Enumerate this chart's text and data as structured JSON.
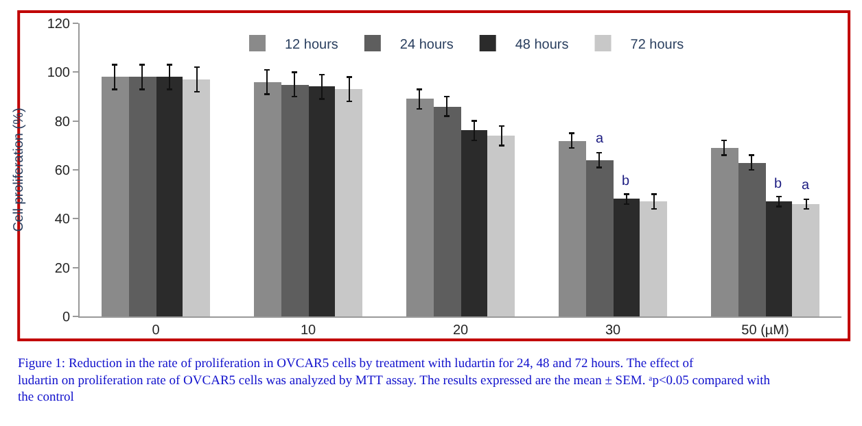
{
  "chart_data": {
    "type": "bar",
    "ylabel": "Cell proliferation (%)",
    "categories": [
      "0",
      "10",
      "20",
      "30",
      "50 (µM)"
    ],
    "series": [
      {
        "name": "12 hours",
        "color": "#8a8a8a",
        "values": [
          98,
          96,
          89,
          72,
          69
        ],
        "errors": [
          5,
          5,
          4,
          3,
          3
        ]
      },
      {
        "name": "24 hours",
        "color": "#5e5e5e",
        "values": [
          98,
          95,
          86,
          64,
          63
        ],
        "errors": [
          5,
          5,
          4,
          3,
          3
        ]
      },
      {
        "name": "48 hours",
        "color": "#2b2b2b",
        "values": [
          98,
          94,
          76,
          48,
          47
        ],
        "errors": [
          5,
          5,
          4,
          2,
          2
        ]
      },
      {
        "name": "72 hours",
        "color": "#c8c8c8",
        "values": [
          97,
          93,
          74,
          47,
          46
        ],
        "errors": [
          5,
          5,
          4,
          3,
          2
        ]
      }
    ],
    "ylim": [
      0,
      120
    ],
    "yticks": [
      0,
      20,
      40,
      60,
      80,
      100,
      120
    ],
    "legend": "top",
    "annotations": [
      {
        "text": "a",
        "x": "30",
        "y": 64
      },
      {
        "text": "b",
        "x": "30",
        "y": 48
      },
      {
        "text": "b",
        "x": "50 (µM)",
        "y": 47
      },
      {
        "text": "a",
        "x": "50 (µM)",
        "y": 46
      },
      "Figure 1: Reduction in the rate of proliferation in OVCAR5 cells by treatment with ludartin for 24, 48 and 72 hours. The effect of ludartin on proliferation rate of OVCAR5 cells was analyzed by MTT assay. The results expressed are the mean ± SEM. ᵃp<0.05 compared with the control"
    ]
  }
}
